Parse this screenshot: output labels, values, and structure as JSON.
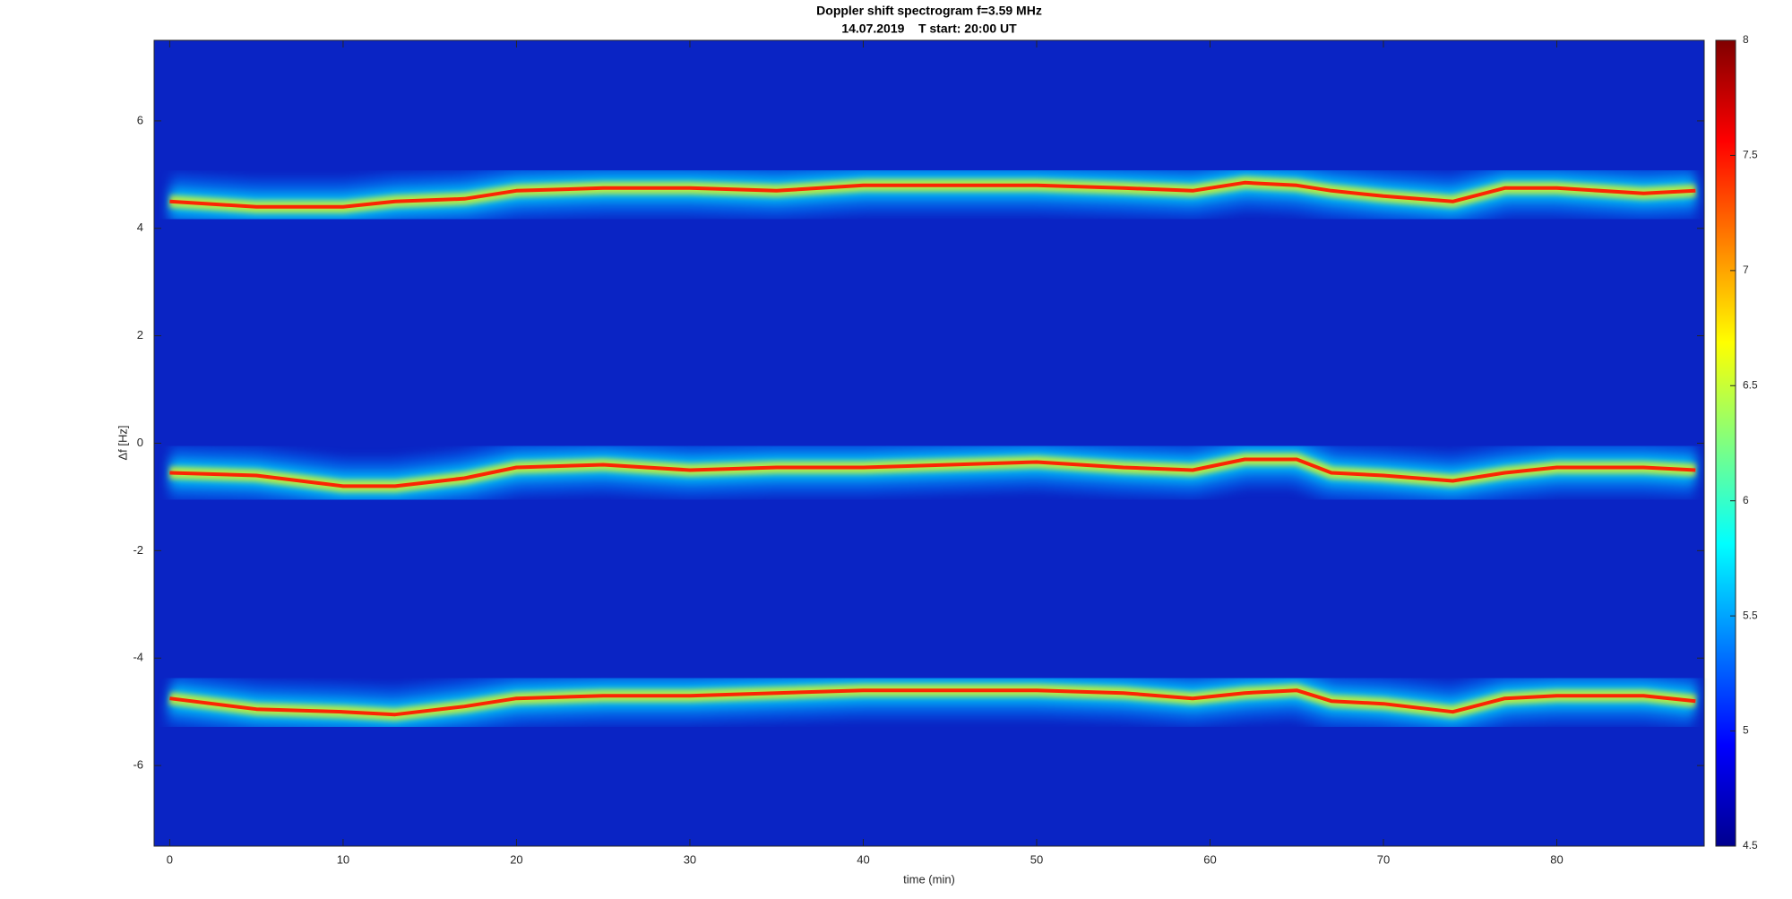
{
  "chart_data": {
    "type": "spectrogram",
    "title": "Doppler shift spectrogram f=3.59 MHz",
    "subtitle": "14.07.2019    T start: 20:00 UT",
    "xlabel": "time (min)",
    "ylabel": "Δf [Hz]",
    "xlim": [
      -0.9,
      88.5
    ],
    "ylim": [
      -7.5,
      7.5
    ],
    "xticks": [
      0,
      10,
      20,
      30,
      40,
      50,
      60,
      70,
      80
    ],
    "yticks": [
      -6,
      -4,
      -2,
      0,
      2,
      4,
      6
    ],
    "x": [
      0,
      5,
      10,
      13,
      17,
      20,
      25,
      30,
      35,
      40,
      45,
      50,
      55,
      59,
      62,
      65,
      67,
      70,
      74,
      77,
      80,
      85,
      88
    ],
    "series": [
      {
        "color": "#ff1a00",
        "values": [
          4.5,
          4.4,
          4.4,
          4.5,
          4.55,
          4.7,
          4.75,
          4.75,
          4.7,
          4.8,
          4.8,
          4.8,
          4.75,
          4.7,
          4.85,
          4.8,
          4.7,
          4.6,
          4.5,
          4.75,
          4.75,
          4.65,
          4.7
        ]
      },
      {
        "color": "#ff1a00",
        "values": [
          -0.55,
          -0.6,
          -0.8,
          -0.8,
          -0.65,
          -0.45,
          -0.4,
          -0.5,
          -0.45,
          -0.45,
          -0.4,
          -0.35,
          -0.45,
          -0.5,
          -0.3,
          -0.3,
          -0.55,
          -0.6,
          -0.7,
          -0.55,
          -0.45,
          -0.45,
          -0.5
        ]
      },
      {
        "color": "#ff1a00",
        "values": [
          -4.75,
          -4.95,
          -5.0,
          -5.05,
          -4.9,
          -4.75,
          -4.7,
          -4.7,
          -4.65,
          -4.6,
          -4.6,
          -4.6,
          -4.65,
          -4.75,
          -4.65,
          -4.6,
          -4.8,
          -4.85,
          -5.0,
          -4.75,
          -4.7,
          -4.7,
          -4.8
        ]
      }
    ],
    "colorbar": {
      "lim": [
        4.5,
        8
      ],
      "ticks": [
        4.5,
        5,
        5.5,
        6,
        6.5,
        7,
        7.5,
        8
      ],
      "colormap": [
        "#00008f",
        "#0000ff",
        "#0080ff",
        "#00ffff",
        "#80ff80",
        "#ffff00",
        "#ff8000",
        "#ff0000",
        "#800000"
      ]
    }
  }
}
